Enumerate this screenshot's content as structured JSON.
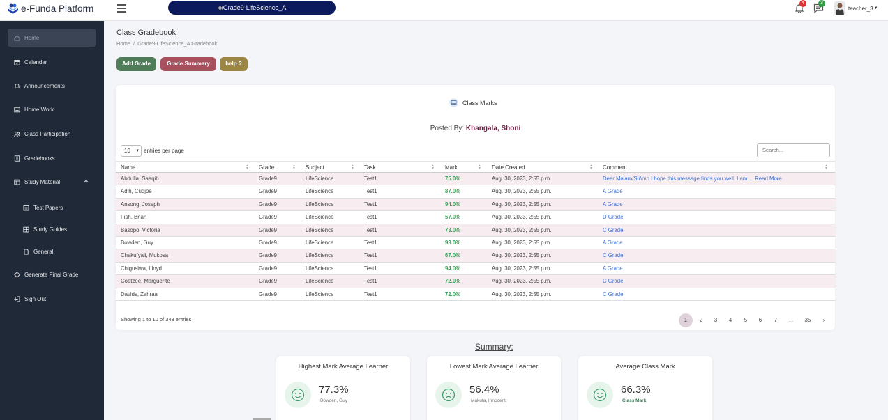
{
  "brand": {
    "name": "e-Funda Platform"
  },
  "header": {
    "class_selector": "Grade9-LifeScience_A",
    "notifications_count": "4",
    "messages_count": "3",
    "user_name": "teacher_3"
  },
  "sidebar": {
    "items": [
      {
        "label": "Home",
        "icon": "home-icon"
      },
      {
        "label": "Calendar",
        "icon": "calendar-icon"
      },
      {
        "label": "Announcements",
        "icon": "bell-icon"
      },
      {
        "label": "Home Work",
        "icon": "list-icon"
      },
      {
        "label": "Class Participation",
        "icon": "users-icon"
      },
      {
        "label": "Gradebooks",
        "icon": "book-icon"
      },
      {
        "label": "Study Material",
        "icon": "folder-icon"
      },
      {
        "label": "Test Papers",
        "icon": "papers-icon"
      },
      {
        "label": "Study Guides",
        "icon": "guides-icon"
      },
      {
        "label": "General",
        "icon": "file-icon"
      },
      {
        "label": "Generate Final Grade",
        "icon": "grade-icon"
      },
      {
        "label": "Sign Out",
        "icon": "sign-out-icon"
      }
    ]
  },
  "page": {
    "title": "Class Gradebook",
    "breadcrumb": [
      "Home",
      "Grade9-LifeScience_A Gradebook"
    ]
  },
  "actions": {
    "add_grade": "Add Grade",
    "grade_summary": "Grade Summary",
    "help": "help ?"
  },
  "marks_card": {
    "title": "Class Marks",
    "posted_label": "Posted By:",
    "posted_by": "Khangala, Shoni",
    "length_value": "10",
    "length_suffix": "entries per page",
    "search_placeholder": "Search...",
    "columns": [
      "Name",
      "Grade",
      "Subject",
      "Task",
      "Mark",
      "Date Created",
      "Comment"
    ],
    "rows": [
      [
        "Abdulla, Saaqib",
        "Grade9",
        "LifeScience",
        "Test1",
        "75.0%",
        "Aug. 30, 2023, 2:55 p.m.",
        "Dear Ma'am/Sir\\n\\n I hope this message finds you well. I am ... Read More"
      ],
      [
        "Adih, Cudjoe",
        "Grade9",
        "LifeScience",
        "Test1",
        "87.0%",
        "Aug. 30, 2023, 2:55 p.m.",
        "A Grade"
      ],
      [
        "Ansong, Joseph",
        "Grade9",
        "LifeScience",
        "Test1",
        "94.0%",
        "Aug. 30, 2023, 2:55 p.m.",
        "A Grade"
      ],
      [
        "Fish, Brian",
        "Grade9",
        "LifeScience",
        "Test1",
        "57.0%",
        "Aug. 30, 2023, 2:55 p.m.",
        "D Grade"
      ],
      [
        "Basopo, Victoria",
        "Grade9",
        "LifeScience",
        "Test1",
        "73.0%",
        "Aug. 30, 2023, 2:55 p.m.",
        "C Grade"
      ],
      [
        "Bowden, Guy",
        "Grade9",
        "LifeScience",
        "Test1",
        "93.0%",
        "Aug. 30, 2023, 2:55 p.m.",
        "A Grade"
      ],
      [
        "Chakufyali, Mukosa",
        "Grade9",
        "LifeScience",
        "Test1",
        "67.0%",
        "Aug. 30, 2023, 2:55 p.m.",
        "C Grade"
      ],
      [
        "Chigusiwa, Lloyd",
        "Grade9",
        "LifeScience",
        "Test1",
        "94.0%",
        "Aug. 30, 2023, 2:55 p.m.",
        "A Grade"
      ],
      [
        "Coetzee, Marguerite",
        "Grade9",
        "LifeScience",
        "Test1",
        "72.0%",
        "Aug. 30, 2023, 2:55 p.m.",
        "C Grade"
      ],
      [
        "Davids, Zahraa",
        "Grade9",
        "LifeScience",
        "Test1",
        "72.0%",
        "Aug. 30, 2023, 2:55 p.m.",
        "C Grade"
      ]
    ],
    "info": "Showing 1 to 10 of 343 entries",
    "pages": [
      "1",
      "2",
      "3",
      "4",
      "5",
      "6",
      "7",
      "…",
      "35",
      "›"
    ]
  },
  "summary": {
    "title": "Summary:",
    "cards": [
      {
        "title": "Highest Mark Average Learner",
        "value": "77.3%",
        "sub": "Bowden, Guy"
      },
      {
        "title": "Lowest Mark Average Learner",
        "value": "56.4%",
        "sub": "Makuta, Innocent"
      },
      {
        "title": "Average Class Mark",
        "value": "66.3%",
        "sub": "Class Mark"
      }
    ]
  },
  "colors": {
    "sidebar_bg": "#1f2937",
    "pill_bg": "#0b1a5c",
    "add_btn": "#4f7d5a",
    "summary_btn": "#a7515e",
    "help_btn": "#9b8646",
    "mark_green": "#2fa84f",
    "posted_name": "#6b1f3f",
    "stripe": "#f7edf1"
  }
}
